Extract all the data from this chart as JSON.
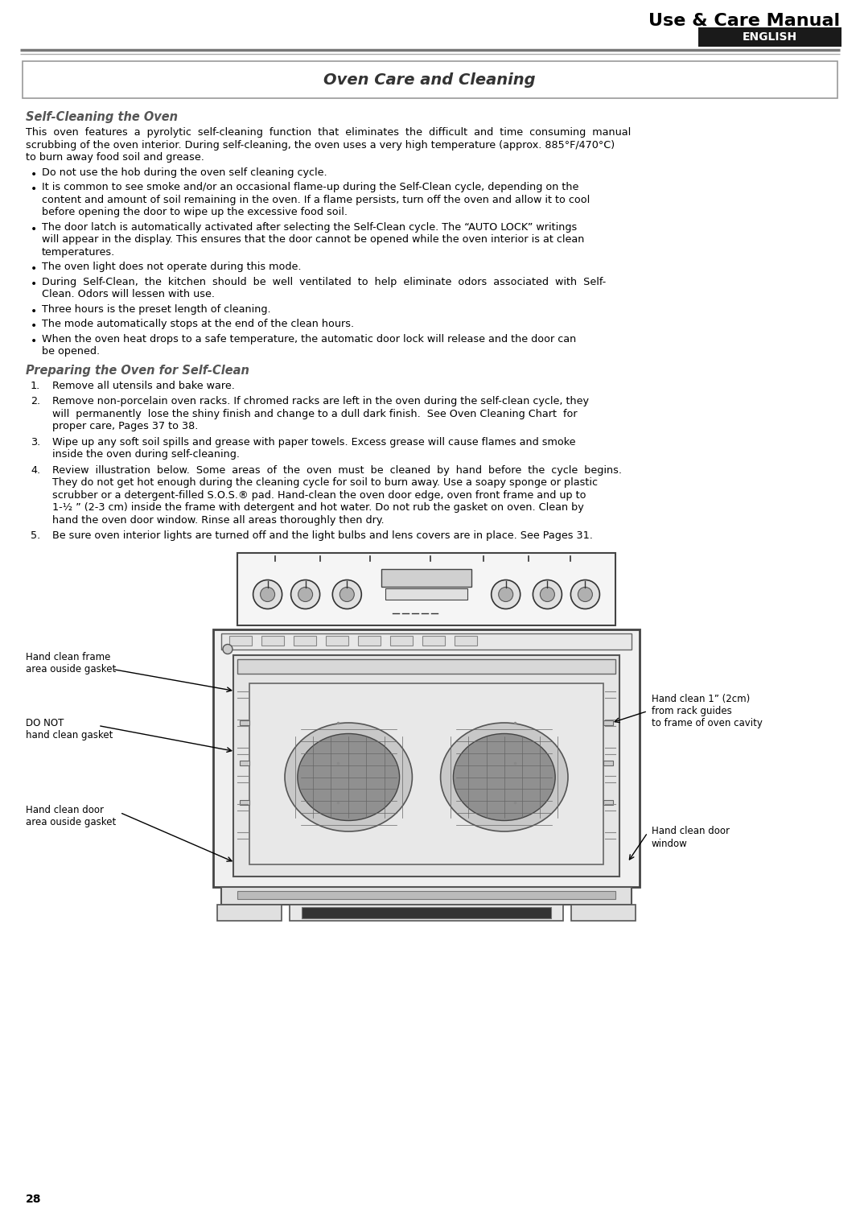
{
  "page_title": "Use & Care Manual",
  "english_label": "ENGLISH",
  "section_title": "Oven Care and Cleaning",
  "subsection1_title": "Self-Cleaning the Oven",
  "bullets": [
    "Do not use the hob during the oven self cleaning cycle.",
    "It is common to see smoke and/or an occasional flame-up during the Self-Clean cycle, depending on the\ncontent and amount of soil remaining in the oven. If a flame persists, turn off the oven and allow it to cool\nbefore opening the door to wipe up the excessive food soil.",
    "The door latch is automatically activated after selecting the Self-Clean cycle. The “AUTO LOCK” writings\nwill appear in the display. This ensures that the door cannot be opened while the oven interior is at clean\ntemperatures.",
    "The oven light does not operate during this mode.",
    "During  Self-Clean,  the  kitchen  should  be  well  ventilated  to  help  eliminate  odors  associated  with  Self-\nClean. Odors will lessen with use.",
    "Three hours is the preset length of cleaning.",
    "The mode automatically stops at the end of the clean hours.",
    "When the oven heat drops to a safe temperature, the automatic door lock will release and the door can\nbe opened."
  ],
  "subsection2_title": "Preparing the Oven for Self-Clean",
  "numbered_items": [
    "Remove all utensils and bake ware.",
    "Remove non-porcelain oven racks. If chromed racks are left in the oven during the self-clean cycle, they\nwill  permanently  lose the shiny finish and change to a dull dark finish.  See Oven Cleaning Chart  for\nproper care, Pages 37 to 38.",
    "Wipe up any soft soil spills and grease with paper towels. Excess grease will cause flames and smoke\ninside the oven during self-cleaning.",
    "Review  illustration  below.  Some  areas  of  the  oven  must  be  cleaned  by  hand  before  the  cycle  begins.\nThey do not get hot enough during the cleaning cycle for soil to burn away. Use a soapy sponge or plastic\nscrubber or a detergent-filled S.O.S.® pad. Hand-clean the oven door edge, oven front frame and up to\n1-½ ” (2-3 cm) inside the frame with detergent and hot water. Do not rub the gasket on oven. Clean by\nhand the oven door window. Rinse all areas thoroughly then dry.",
    "Be sure oven interior lights are turned off and the light bulbs and lens covers are in place. See Pages 31."
  ],
  "diagram_labels": {
    "top_left": "Hand clean frame\narea ouside gasket",
    "mid_left": "DO NOT\nhand clean gasket",
    "bottom_left": "Hand clean door\narea ouside gasket",
    "top_right": "Hand clean 1” (2cm)\nfrom rack guides\nto frame of oven cavity",
    "bottom_right": "Hand clean door\nwindow"
  },
  "page_number": "28",
  "bg_color": "#ffffff",
  "text_color": "#000000",
  "header_line_color1": "#888888",
  "header_line_color2": "#aaaaaa",
  "english_bg": "#1a1a1a",
  "english_text": "#ffffff"
}
